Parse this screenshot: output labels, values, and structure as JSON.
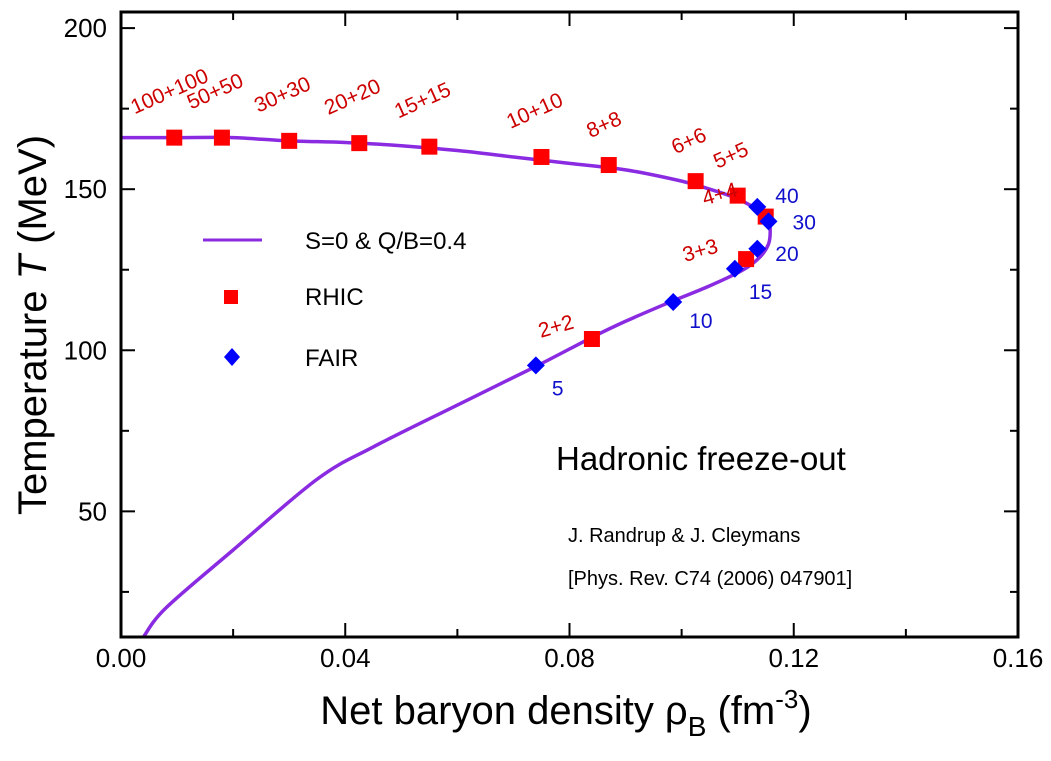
{
  "chart_data": {
    "type": "scatter",
    "xlabel_main": "Net baryon density ρ",
    "xlabel_sub": "B",
    "xlabel_unit_open": " (fm",
    "xlabel_unit_sup": "-3",
    "xlabel_unit_close": ")",
    "ylabel_main": "Temperature ",
    "ylabel_italic": "T",
    "ylabel_unit": " (MeV)",
    "xlim": [
      0.0,
      0.16
    ],
    "ylim": [
      11,
      205
    ],
    "x_ticks": [
      "0.00",
      "0.04",
      "0.08",
      "0.12",
      "0.16"
    ],
    "x_tick_values": [
      0.0,
      0.04,
      0.08,
      0.12,
      0.16
    ],
    "y_ticks": [
      "50",
      "100",
      "150",
      "200"
    ],
    "y_tick_values": [
      50,
      100,
      150,
      200
    ],
    "grid": false,
    "legend_position": "center-left",
    "legend": [
      {
        "label": "S=0 & Q/B=0.4",
        "kind": "line",
        "color": "#8a2be2"
      },
      {
        "label": "RHIC",
        "kind": "square",
        "color": "#ff0000"
      },
      {
        "label": "FAIR",
        "kind": "diamond",
        "color": "#0000ff"
      }
    ],
    "colors": {
      "curve": "#8a2be2",
      "rhic": "#ff0000",
      "fair": "#0000ff",
      "rhic_label": "#cc0000",
      "fair_label": "#1010cc"
    },
    "series": [
      {
        "name": "S=0 & Q/B=0.4",
        "kind": "line",
        "x": [
          0.0,
          0.01,
          0.02,
          0.03,
          0.04,
          0.05,
          0.06,
          0.07,
          0.08,
          0.09,
          0.1,
          0.105,
          0.11,
          0.114,
          0.1155,
          0.1158,
          0.1155,
          0.114,
          0.111,
          0.105,
          0.098,
          0.09,
          0.084,
          0.074,
          0.06,
          0.045,
          0.035,
          0.02,
          0.008,
          0.004
        ],
        "y": [
          166,
          166,
          166,
          165,
          164.5,
          163.5,
          162,
          160,
          158,
          156,
          152.5,
          150,
          147,
          143,
          140,
          137,
          133,
          129,
          125,
          120,
          115,
          109,
          104,
          95,
          83,
          70,
          60,
          38,
          20,
          11
        ]
      },
      {
        "name": "RHIC",
        "kind": "square",
        "x": [
          0.0095,
          0.018,
          0.03,
          0.0425,
          0.055,
          0.075,
          0.087,
          0.1025,
          0.11,
          0.115,
          0.1115,
          0.084
        ],
        "y": [
          166,
          166,
          165,
          164.3,
          163.2,
          160,
          157.5,
          152.5,
          148,
          141.5,
          128.3,
          103.5
        ],
        "labels": [
          "100+100",
          "50+50",
          "30+30",
          "20+20",
          "15+15",
          "10+10",
          "8+8",
          "6+6",
          "5+5",
          "4+4",
          "3+3",
          "2+2"
        ]
      },
      {
        "name": "FAIR",
        "kind": "diamond",
        "x": [
          0.1135,
          0.1155,
          0.1135,
          0.1095,
          0.0985,
          0.074
        ],
        "y": [
          144.5,
          140,
          131.5,
          125.3,
          115,
          95.3
        ],
        "labels": [
          "40",
          "30",
          "20",
          "15",
          "10",
          "5"
        ]
      }
    ],
    "annotations": {
      "title": "Hadronic freeze-out",
      "authors": "J. Randrup & J. Cleymans",
      "reference": "[Phys. Rev. C74 (2006) 047901]"
    }
  }
}
